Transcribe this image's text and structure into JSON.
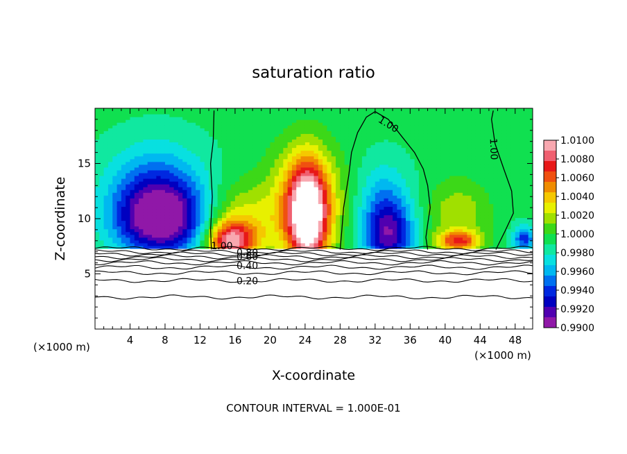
{
  "chart_data": {
    "type": "heatmap",
    "title": "saturation ratio",
    "xlabel": "X-coordinate",
    "ylabel": "Z-coordinate",
    "x_unit": "(×1000 m)",
    "x_unit_secondary": "(×1000 m)",
    "xlim": [
      0,
      50
    ],
    "ylim": [
      0,
      20
    ],
    "x_ticks": [
      4,
      8,
      12,
      16,
      20,
      24,
      28,
      32,
      36,
      40,
      44,
      48
    ],
    "y_ticks": [
      5,
      10,
      15
    ],
    "footer": "CONTOUR INTERVAL = 1.000E-01",
    "colorbar": {
      "levels": [
        "1.0100",
        "1.0080",
        "1.0060",
        "1.0040",
        "1.0020",
        "1.0000",
        "0.9980",
        "0.9960",
        "0.9940",
        "0.9920",
        "0.9900"
      ],
      "min": 0.99,
      "max": 1.01,
      "colors": [
        "#f8a8b0",
        "#f06070",
        "#e81818",
        "#f05010",
        "#f08c00",
        "#f5c800",
        "#e8f000",
        "#a0e000",
        "#3cd818",
        "#10e050",
        "#10e8a0",
        "#08e0e0",
        "#00b8f0",
        "#0070f0",
        "#0028e0",
        "#0000c0",
        "#5000b0",
        "#9018a8"
      ]
    },
    "contour_labels": [
      {
        "text": "1.00",
        "x": 33.5,
        "y": 18.5,
        "rot": 32
      },
      {
        "text": "1.00",
        "x": 45.5,
        "y": 16.3,
        "rot": 88
      },
      {
        "text": "1.00",
        "x": 14.5,
        "y": 7.5,
        "rot": 0
      },
      {
        "text": "0.80",
        "x": 17.4,
        "y": 6.9,
        "rot": 0
      },
      {
        "text": "0.60",
        "x": 17.4,
        "y": 6.5,
        "rot": 0
      },
      {
        "text": "0.40",
        "x": 17.4,
        "y": 5.7,
        "rot": 0
      },
      {
        "text": "0.20",
        "x": 17.4,
        "y": 4.3,
        "rot": 0
      }
    ],
    "saturation_contours": [
      {
        "name": "1.00 line A",
        "points": [
          [
            13.3,
            7.2
          ],
          [
            13.2,
            9.0
          ],
          [
            13.4,
            12.0
          ],
          [
            13.2,
            15.0
          ],
          [
            13.5,
            17.0
          ],
          [
            13.6,
            19.8
          ]
        ]
      },
      {
        "name": "1.00 line B",
        "points": [
          [
            28.0,
            7.2
          ],
          [
            28.2,
            9.0
          ],
          [
            28.4,
            11.0
          ],
          [
            29.0,
            14.0
          ],
          [
            29.3,
            16.0
          ],
          [
            30.0,
            17.8
          ],
          [
            31.0,
            19.2
          ],
          [
            32.0,
            19.7
          ],
          [
            33.5,
            19.0
          ],
          [
            35.0,
            17.5
          ],
          [
            36.5,
            16.0
          ],
          [
            37.5,
            14.5
          ],
          [
            38.0,
            13.0
          ],
          [
            38.3,
            11.0
          ],
          [
            38.0,
            9.5
          ],
          [
            37.8,
            8.3
          ],
          [
            38.0,
            7.2
          ]
        ]
      },
      {
        "name": "1.00 line C",
        "points": [
          [
            45.8,
            7.2
          ],
          [
            46.8,
            8.8
          ],
          [
            47.8,
            10.5
          ],
          [
            47.6,
            12.5
          ],
          [
            46.7,
            14.5
          ],
          [
            45.7,
            16.8
          ],
          [
            45.3,
            19.0
          ],
          [
            45.5,
            19.8
          ]
        ]
      }
    ],
    "surface_contours": [
      {
        "level": "1.00",
        "z": 7.3
      },
      {
        "level": "0.90",
        "z": 7.0
      },
      {
        "level": "0.80",
        "z": 6.8
      },
      {
        "level": "0.70",
        "z": 6.55
      },
      {
        "level": "0.60",
        "z": 6.3
      },
      {
        "level": "0.50",
        "z": 6.0
      },
      {
        "level": "0.40",
        "z": 5.6
      },
      {
        "level": "0.30",
        "z": 5.1
      },
      {
        "level": "0.20",
        "z": 4.4
      },
      {
        "level": "0.10",
        "z": 2.9
      }
    ],
    "features": [
      {
        "name": "dry region west",
        "x": 7.5,
        "z": 9.8,
        "value": 0.9905,
        "sx": 5.2,
        "sz": 3.2
      },
      {
        "name": "dry region west upper",
        "x": 7.0,
        "z": 13.0,
        "value": 0.995,
        "sx": 5.5,
        "sz": 4.0
      },
      {
        "name": "dry region 33km",
        "x": 33.5,
        "z": 8.5,
        "value": 0.992,
        "sx": 2.8,
        "sz": 3.0
      },
      {
        "name": "dry region 33km upper",
        "x": 33.0,
        "z": 12.0,
        "value": 0.9965,
        "sx": 3.0,
        "sz": 3.5
      },
      {
        "name": "supersaturated plume 24km",
        "x": 24.3,
        "z": 10.2,
        "value": 1.01,
        "sx": 2.2,
        "sz": 4.6
      },
      {
        "name": "supersaturated plume 24km halo",
        "x": 24.0,
        "z": 11.5,
        "value": 1.0045,
        "sx": 4.2,
        "sz": 5.0
      },
      {
        "name": "supersaturated plume 16km",
        "x": 15.5,
        "z": 8.0,
        "value": 1.0075,
        "sx": 2.6,
        "sz": 1.7
      },
      {
        "name": "supersaturated plume 16km halo",
        "x": 16.5,
        "z": 9.5,
        "value": 1.003,
        "sx": 4.0,
        "sz": 3.5
      },
      {
        "name": "moist column 41km",
        "x": 41.5,
        "z": 8.0,
        "value": 1.006,
        "sx": 2.5,
        "sz": 0.9
      },
      {
        "name": "moist column 41km halo",
        "x": 41.5,
        "z": 10.5,
        "value": 1.002,
        "sx": 3.5,
        "sz": 3.0
      },
      {
        "name": "dry spot 47km",
        "x": 49.0,
        "z": 8.2,
        "value": 0.994,
        "sx": 1.3,
        "sz": 1.2
      }
    ],
    "surface_z": 7.3
  }
}
